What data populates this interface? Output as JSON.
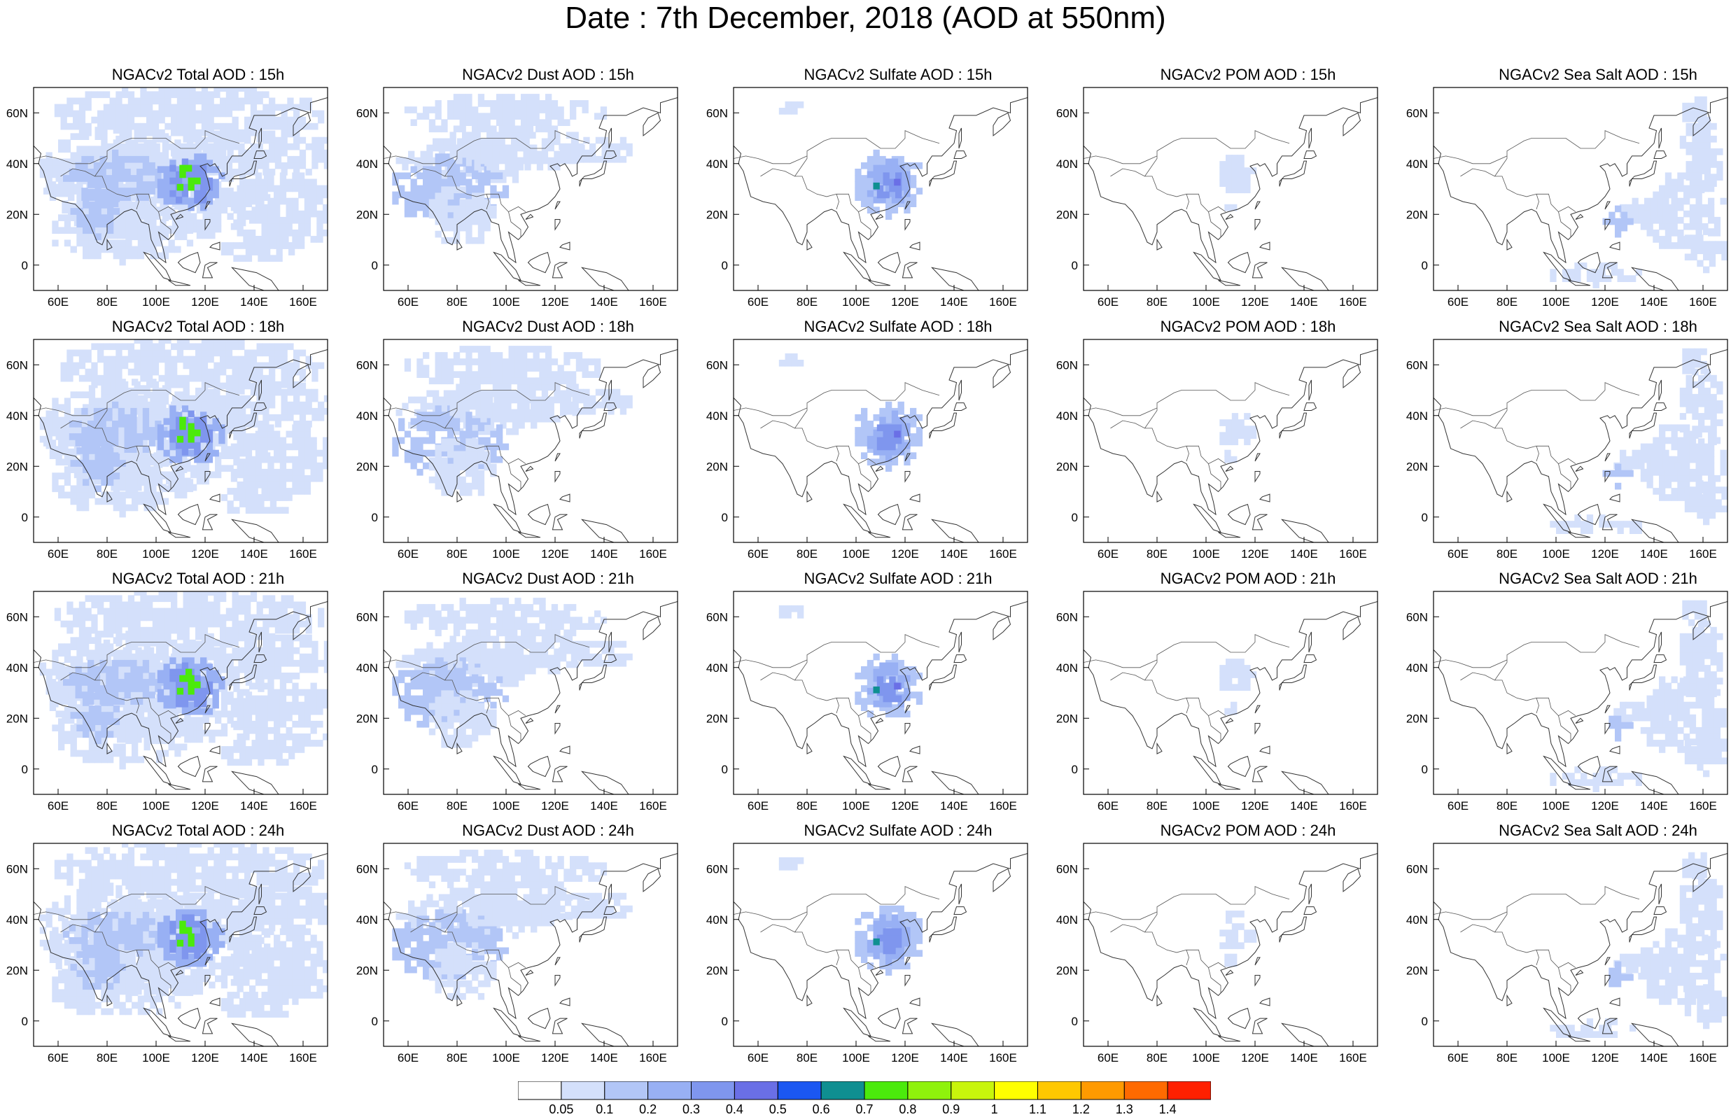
{
  "title": "Date : 7th December, 2018 (AOD at 550nm)",
  "map": {
    "lon_range": [
      50,
      170
    ],
    "lat_range": [
      -10,
      70
    ],
    "lon_ticks": [
      60,
      80,
      100,
      120,
      140,
      160
    ],
    "lon_tick_labels": [
      "60E",
      "80E",
      "100E",
      "120E",
      "140E",
      "160E"
    ],
    "lat_ticks": [
      0,
      20,
      40,
      60
    ],
    "lat_tick_labels": [
      "0",
      "20N",
      "40N",
      "60N"
    ]
  },
  "panels": [
    {
      "title": "NGACv2 Total AOD : 15h",
      "species": "total",
      "hour": "15h"
    },
    {
      "title": "NGACv2 Dust AOD : 15h",
      "species": "dust",
      "hour": "15h"
    },
    {
      "title": "NGACv2 Sulfate AOD : 15h",
      "species": "sulfate",
      "hour": "15h"
    },
    {
      "title": "NGACv2 POM AOD : 15h",
      "species": "pom",
      "hour": "15h"
    },
    {
      "title": "NGACv2 Sea Salt AOD : 15h",
      "species": "seasalt",
      "hour": "15h"
    },
    {
      "title": "NGACv2 Total AOD : 18h",
      "species": "total",
      "hour": "18h"
    },
    {
      "title": "NGACv2 Dust AOD : 18h",
      "species": "dust",
      "hour": "18h"
    },
    {
      "title": "NGACv2 Sulfate AOD : 18h",
      "species": "sulfate",
      "hour": "18h"
    },
    {
      "title": "NGACv2 POM AOD : 18h",
      "species": "pom",
      "hour": "18h"
    },
    {
      "title": "NGACv2 Sea Salt AOD : 18h",
      "species": "seasalt",
      "hour": "18h"
    },
    {
      "title": "NGACv2 Total AOD : 21h",
      "species": "total",
      "hour": "21h"
    },
    {
      "title": "NGACv2 Dust AOD : 21h",
      "species": "dust",
      "hour": "21h"
    },
    {
      "title": "NGACv2 Sulfate AOD : 21h",
      "species": "sulfate",
      "hour": "21h"
    },
    {
      "title": "NGACv2 POM AOD : 21h",
      "species": "pom",
      "hour": "21h"
    },
    {
      "title": "NGACv2 Sea Salt AOD : 21h",
      "species": "seasalt",
      "hour": "21h"
    },
    {
      "title": "NGACv2 Total AOD : 24h",
      "species": "total",
      "hour": "24h"
    },
    {
      "title": "NGACv2 Dust AOD : 24h",
      "species": "dust",
      "hour": "24h"
    },
    {
      "title": "NGACv2 Sulfate AOD : 24h",
      "species": "sulfate",
      "hour": "24h"
    },
    {
      "title": "NGACv2 POM AOD : 24h",
      "species": "pom",
      "hour": "24h"
    },
    {
      "title": "NGACv2 Sea Salt  AOD : 24h",
      "species": "seasalt",
      "hour": "24h"
    }
  ],
  "colorbar": {
    "labels": [
      "0.05",
      "0.1",
      "0.2",
      "0.3",
      "0.4",
      "0.5",
      "0.6",
      "0.7",
      "0.8",
      "0.9",
      "1",
      "1.1",
      "1.2",
      "1.3",
      "1.4"
    ],
    "colors": [
      "#ffffff",
      "#d4e0fb",
      "#b2c6f7",
      "#98b0f4",
      "#7f96ee",
      "#6a6fe6",
      "#1b57f2",
      "#0f8f91",
      "#4bea0c",
      "#8ff20c",
      "#c8f50c",
      "#ffff00",
      "#ffc800",
      "#ff9a00",
      "#ff6a00",
      "#ff2000"
    ]
  }
}
